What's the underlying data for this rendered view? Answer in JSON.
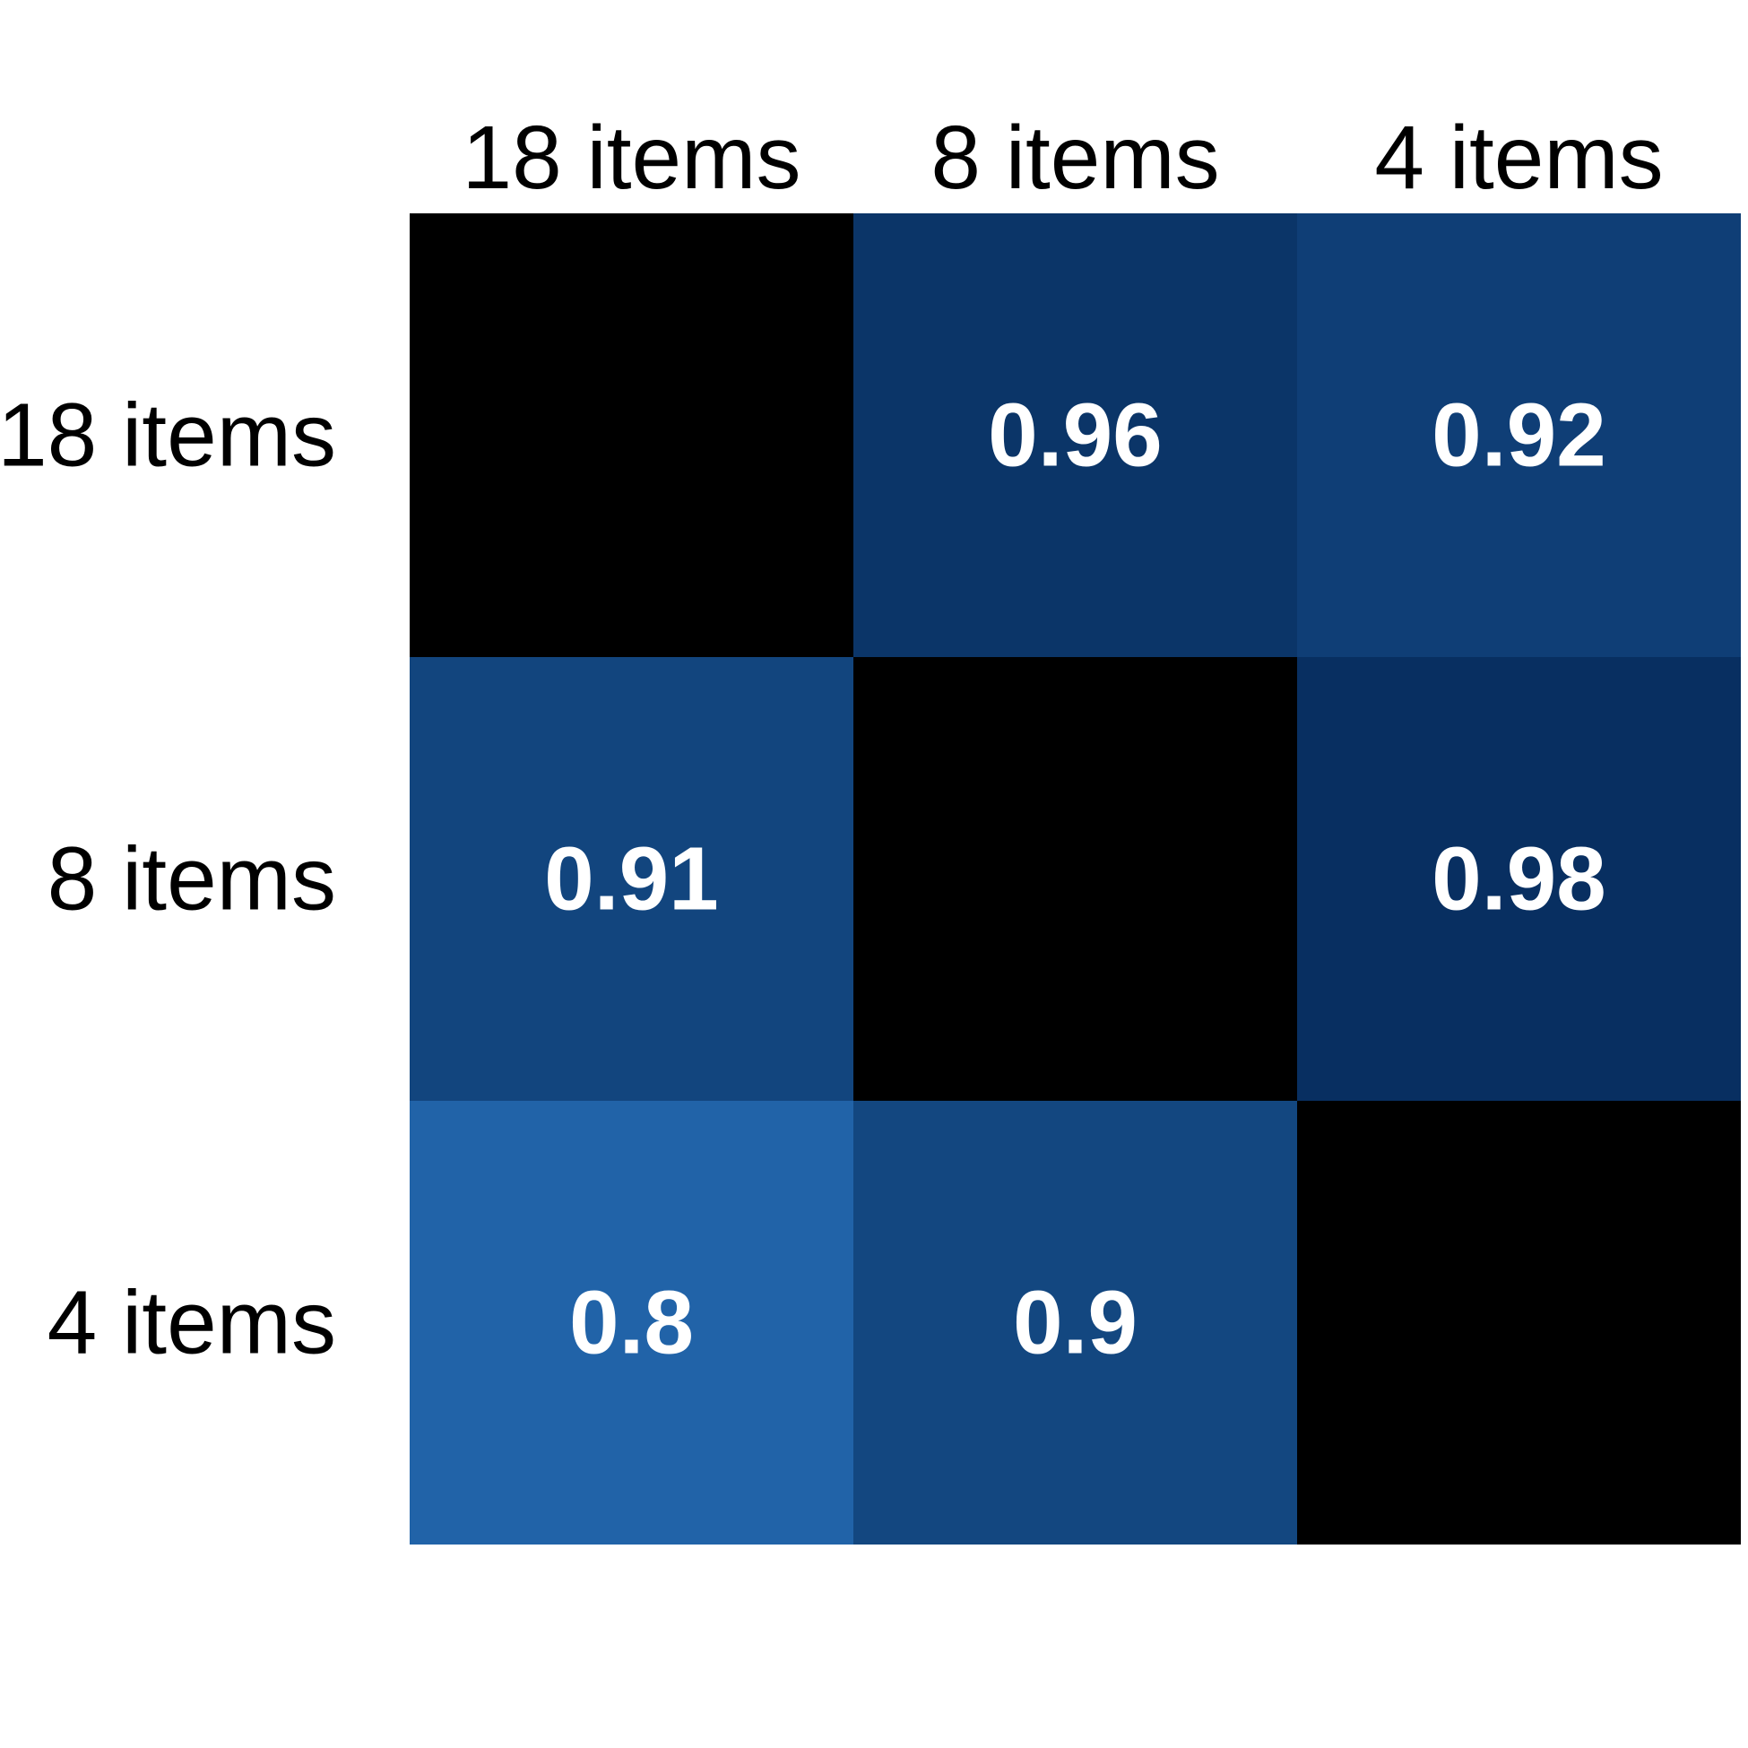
{
  "chart_data": {
    "type": "heatmap",
    "x_categories": [
      "18 items",
      "8 items",
      "4 items"
    ],
    "y_categories": [
      "18 items",
      "8 items",
      "4 items"
    ],
    "x_axis_position": "top",
    "values": [
      [
        null,
        0.96,
        0.92
      ],
      [
        0.91,
        null,
        0.98
      ],
      [
        0.8,
        0.9,
        null
      ]
    ],
    "cell_labels": [
      [
        "",
        "0.96",
        "0.92"
      ],
      [
        "0.91",
        "",
        "0.98"
      ],
      [
        "0.8",
        "0.9",
        ""
      ]
    ],
    "colors": {
      "diagonal": "#000000",
      "scale": [
        {
          "value": 0.8,
          "color": "#2163a8"
        },
        {
          "value": 0.9,
          "color": "#134780"
        },
        {
          "value": 0.91,
          "color": "#12457e"
        },
        {
          "value": 0.92,
          "color": "#0f3e76"
        },
        {
          "value": 0.96,
          "color": "#0b3568"
        },
        {
          "value": 0.98,
          "color": "#082f61"
        }
      ],
      "label_text": "#ffffff",
      "axis_text": "#000000"
    },
    "legend": "none",
    "grid": false
  }
}
